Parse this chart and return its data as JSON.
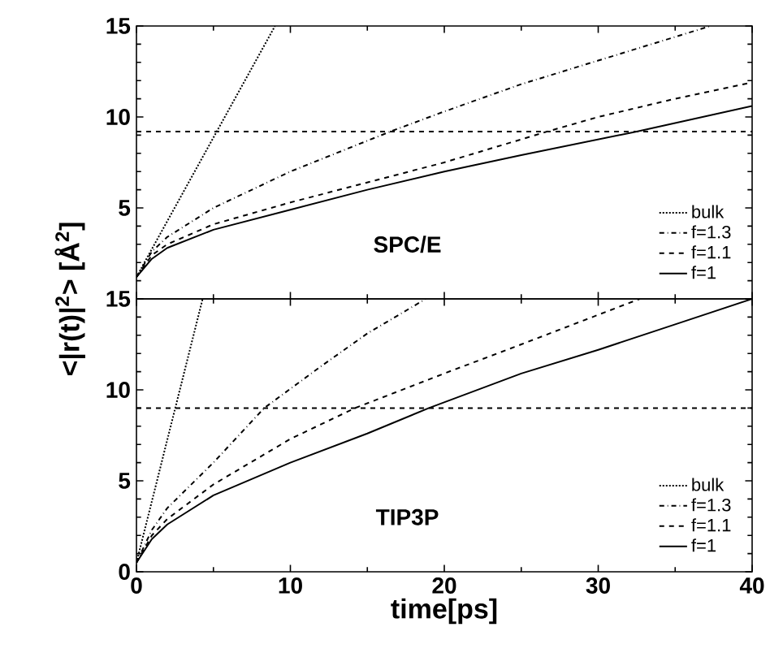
{
  "chart_data": [
    {
      "type": "line",
      "ylabel": "<|r(t)|$^{2}$> [Å$^{2}$]",
      "annotations": [
        "SPC/E"
      ],
      "xlim": [
        0,
        40
      ],
      "ylim": [
        0,
        15
      ],
      "xticks": [
        0,
        10,
        20,
        30,
        40
      ],
      "yticks": [
        {
          "value": 0,
          "label": null
        },
        5,
        10,
        15
      ],
      "tick_labels": "y",
      "legend": "bottom right",
      "marker": "none",
      "ref_lines": [
        {
          "axis": "y",
          "value": 9.2,
          "line_style": "dashed"
        }
      ],
      "series": [
        {
          "name": "bulk",
          "color": "#000000",
          "line_style": "dotted",
          "x": [
            0,
            9
          ],
          "values": [
            1.2,
            15
          ]
        },
        {
          "name": "f=1.3",
          "color": "#000000",
          "line_style": "dashdot",
          "x": [
            0,
            1,
            2,
            5,
            10,
            16.5,
            20,
            25,
            30,
            37.3
          ],
          "values": [
            1.2,
            2.6,
            3.4,
            5.0,
            7.0,
            9.2,
            10.3,
            11.8,
            13.1,
            15
          ]
        },
        {
          "name": "f=1.1",
          "color": "#000000",
          "line_style": "dashed",
          "x": [
            0,
            1,
            2,
            5,
            10,
            15,
            20,
            26.7,
            30,
            35,
            40
          ],
          "values": [
            1.2,
            2.4,
            3.0,
            4.1,
            5.3,
            6.4,
            7.5,
            9.2,
            10.0,
            11.0,
            11.9
          ]
        },
        {
          "name": "f=1",
          "color": "#000000",
          "line_style": "solid",
          "x": [
            0,
            1,
            2,
            5,
            10,
            15,
            20,
            25,
            32.5,
            40
          ],
          "values": [
            1.2,
            2.2,
            2.8,
            3.8,
            4.9,
            6.0,
            7.0,
            7.9,
            9.2,
            10.6
          ]
        }
      ]
    },
    {
      "type": "line",
      "xlabel": "time[ps]",
      "annotations": [
        "TIP3P"
      ],
      "xlim": [
        0,
        40
      ],
      "ylim": [
        0,
        15
      ],
      "xticks": [
        0,
        10,
        20,
        30,
        40
      ],
      "yticks": [
        0,
        5,
        10,
        15
      ],
      "legend": "bottom right",
      "marker": "none",
      "ref_lines": [
        {
          "axis": "y",
          "value": 9.0,
          "line_style": "dashed"
        }
      ],
      "series": [
        {
          "name": "bulk",
          "color": "#000000",
          "line_style": "dotted",
          "x": [
            0,
            4.3
          ],
          "values": [
            0.5,
            15
          ]
        },
        {
          "name": "f=1.3",
          "color": "#000000",
          "line_style": "dashdot",
          "x": [
            0,
            1,
            2,
            5,
            8.3,
            12,
            15,
            18.8
          ],
          "values": [
            0.5,
            2.3,
            3.5,
            6.0,
            9.0,
            11.3,
            13.1,
            15
          ]
        },
        {
          "name": "f=1.1",
          "color": "#000000",
          "line_style": "dashed",
          "x": [
            0,
            1,
            2,
            5,
            10,
            14.2,
            20,
            25,
            32.7
          ],
          "values": [
            0.5,
            2.0,
            2.9,
            4.8,
            7.3,
            9.0,
            10.9,
            12.5,
            15
          ]
        },
        {
          "name": "f=1",
          "color": "#000000",
          "line_style": "solid",
          "x": [
            0,
            1,
            2,
            5,
            10,
            15,
            19,
            25,
            30,
            35,
            40
          ],
          "values": [
            0.5,
            1.8,
            2.6,
            4.2,
            6.0,
            7.6,
            9.0,
            10.9,
            12.2,
            13.6,
            15
          ]
        }
      ]
    }
  ]
}
